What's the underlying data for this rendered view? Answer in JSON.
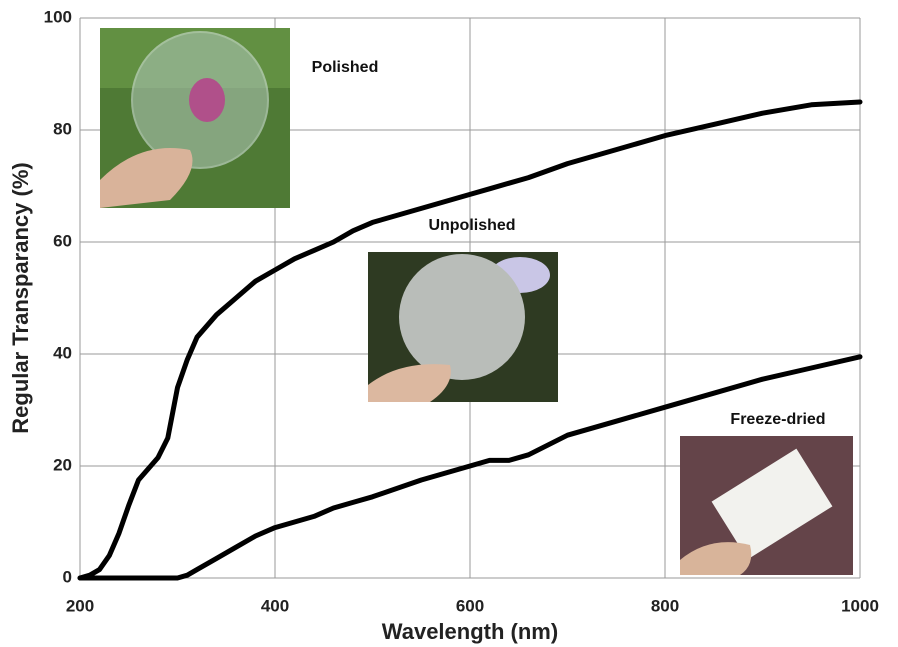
{
  "chart_data": {
    "type": "line",
    "xlabel": "Wavelength (nm)",
    "ylabel": "Regular Transparancy (%)",
    "x": [
      200,
      210,
      220,
      230,
      240,
      250,
      260,
      280,
      290,
      300,
      310,
      320,
      340,
      360,
      380,
      400,
      420,
      440,
      460,
      480,
      500,
      550,
      600,
      620,
      640,
      660,
      700,
      750,
      800,
      850,
      900,
      950,
      1000
    ],
    "series": [
      {
        "color": "#000000",
        "values": [
          0,
          0.5,
          1.5,
          4,
          8,
          13,
          17.5,
          21.5,
          25,
          34,
          39,
          43,
          47,
          50,
          53,
          55,
          57,
          58.5,
          60,
          62,
          63.5,
          66,
          68.5,
          69.5,
          70.5,
          71.5,
          74,
          76.5,
          79,
          81,
          83,
          84.5,
          85
        ]
      },
      {
        "color": "#000000",
        "values": [
          0,
          0,
          0,
          0,
          0,
          0,
          0,
          0,
          0,
          0,
          0.5,
          1.5,
          3.5,
          5.5,
          7.5,
          9,
          10,
          11,
          12.5,
          13.5,
          14.5,
          17.5,
          20,
          21,
          21,
          22,
          25.5,
          28,
          30.5,
          33,
          35.5,
          37.5,
          39.5
        ]
      }
    ],
    "annotations": [
      "Polished",
      "Unpolished",
      "Freeze-dried"
    ],
    "xlim": [
      200,
      1000
    ],
    "ylim": [
      0,
      100
    ],
    "xticks": [
      200,
      400,
      600,
      800,
      1000
    ],
    "yticks": [
      0,
      20,
      40,
      60,
      80,
      100
    ],
    "grid": true
  }
}
